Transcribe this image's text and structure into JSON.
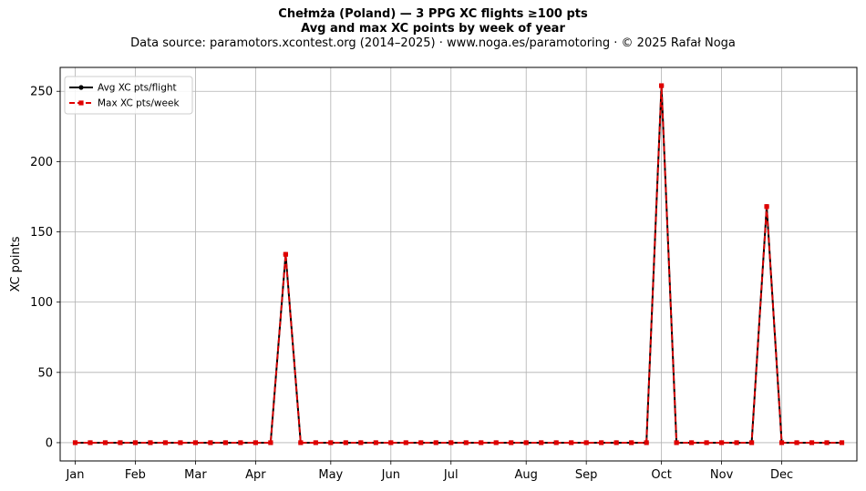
{
  "header": {
    "title": "Chełmża (Poland)  —  3 PPG XC flights ≥100 pts",
    "subtitle": "Avg and max XC points by week of year",
    "source": "Data source: paramotors.xcontest.org (2014–2025)  ·  www.noga.es/paramotoring  ·  © 2025 Rafał Noga"
  },
  "chart_data": {
    "type": "line",
    "title": "Chełmża (Poland)  —  3 PPG XC flights ≥100 pts",
    "subtitle": "Avg and max XC points by week of year",
    "xlabel": "",
    "ylabel": "XC points",
    "xlim": [
      0,
      53
    ],
    "ylim": [
      -13,
      267
    ],
    "yticks": [
      0,
      50,
      100,
      150,
      200,
      250
    ],
    "month_ticks": [
      {
        "label": "Jan",
        "week": 1
      },
      {
        "label": "Feb",
        "week": 5
      },
      {
        "label": "Mar",
        "week": 9
      },
      {
        "label": "Apr",
        "week": 13
      },
      {
        "label": "May",
        "week": 18
      },
      {
        "label": "Jun",
        "week": 22
      },
      {
        "label": "Jul",
        "week": 26
      },
      {
        "label": "Aug",
        "week": 31
      },
      {
        "label": "Sep",
        "week": 35
      },
      {
        "label": "Oct",
        "week": 40
      },
      {
        "label": "Nov",
        "week": 44
      },
      {
        "label": "Dec",
        "week": 48
      }
    ],
    "grid": true,
    "legend_position": "top-left",
    "x": [
      1,
      2,
      3,
      4,
      5,
      6,
      7,
      8,
      9,
      10,
      11,
      12,
      13,
      14,
      15,
      16,
      17,
      18,
      19,
      20,
      21,
      22,
      23,
      24,
      25,
      26,
      27,
      28,
      29,
      30,
      31,
      32,
      33,
      34,
      35,
      36,
      37,
      38,
      39,
      40,
      41,
      42,
      43,
      44,
      45,
      46,
      47,
      48,
      49,
      50,
      51,
      52
    ],
    "series": [
      {
        "name": "Avg XC pts/flight",
        "color": "#000000",
        "style": "solid",
        "marker": "circle",
        "values": [
          0,
          0,
          0,
          0,
          0,
          0,
          0,
          0,
          0,
          0,
          0,
          0,
          0,
          0,
          134,
          0,
          0,
          0,
          0,
          0,
          0,
          0,
          0,
          0,
          0,
          0,
          0,
          0,
          0,
          0,
          0,
          0,
          0,
          0,
          0,
          0,
          0,
          0,
          0,
          254,
          0,
          0,
          0,
          0,
          0,
          0,
          168,
          0,
          0,
          0,
          0,
          0
        ]
      },
      {
        "name": "Max XC pts/week",
        "color": "#e00000",
        "style": "dashed",
        "marker": "square",
        "values": [
          0,
          0,
          0,
          0,
          0,
          0,
          0,
          0,
          0,
          0,
          0,
          0,
          0,
          0,
          134,
          0,
          0,
          0,
          0,
          0,
          0,
          0,
          0,
          0,
          0,
          0,
          0,
          0,
          0,
          0,
          0,
          0,
          0,
          0,
          0,
          0,
          0,
          0,
          0,
          254,
          0,
          0,
          0,
          0,
          0,
          0,
          168,
          0,
          0,
          0,
          0,
          0
        ]
      }
    ]
  }
}
